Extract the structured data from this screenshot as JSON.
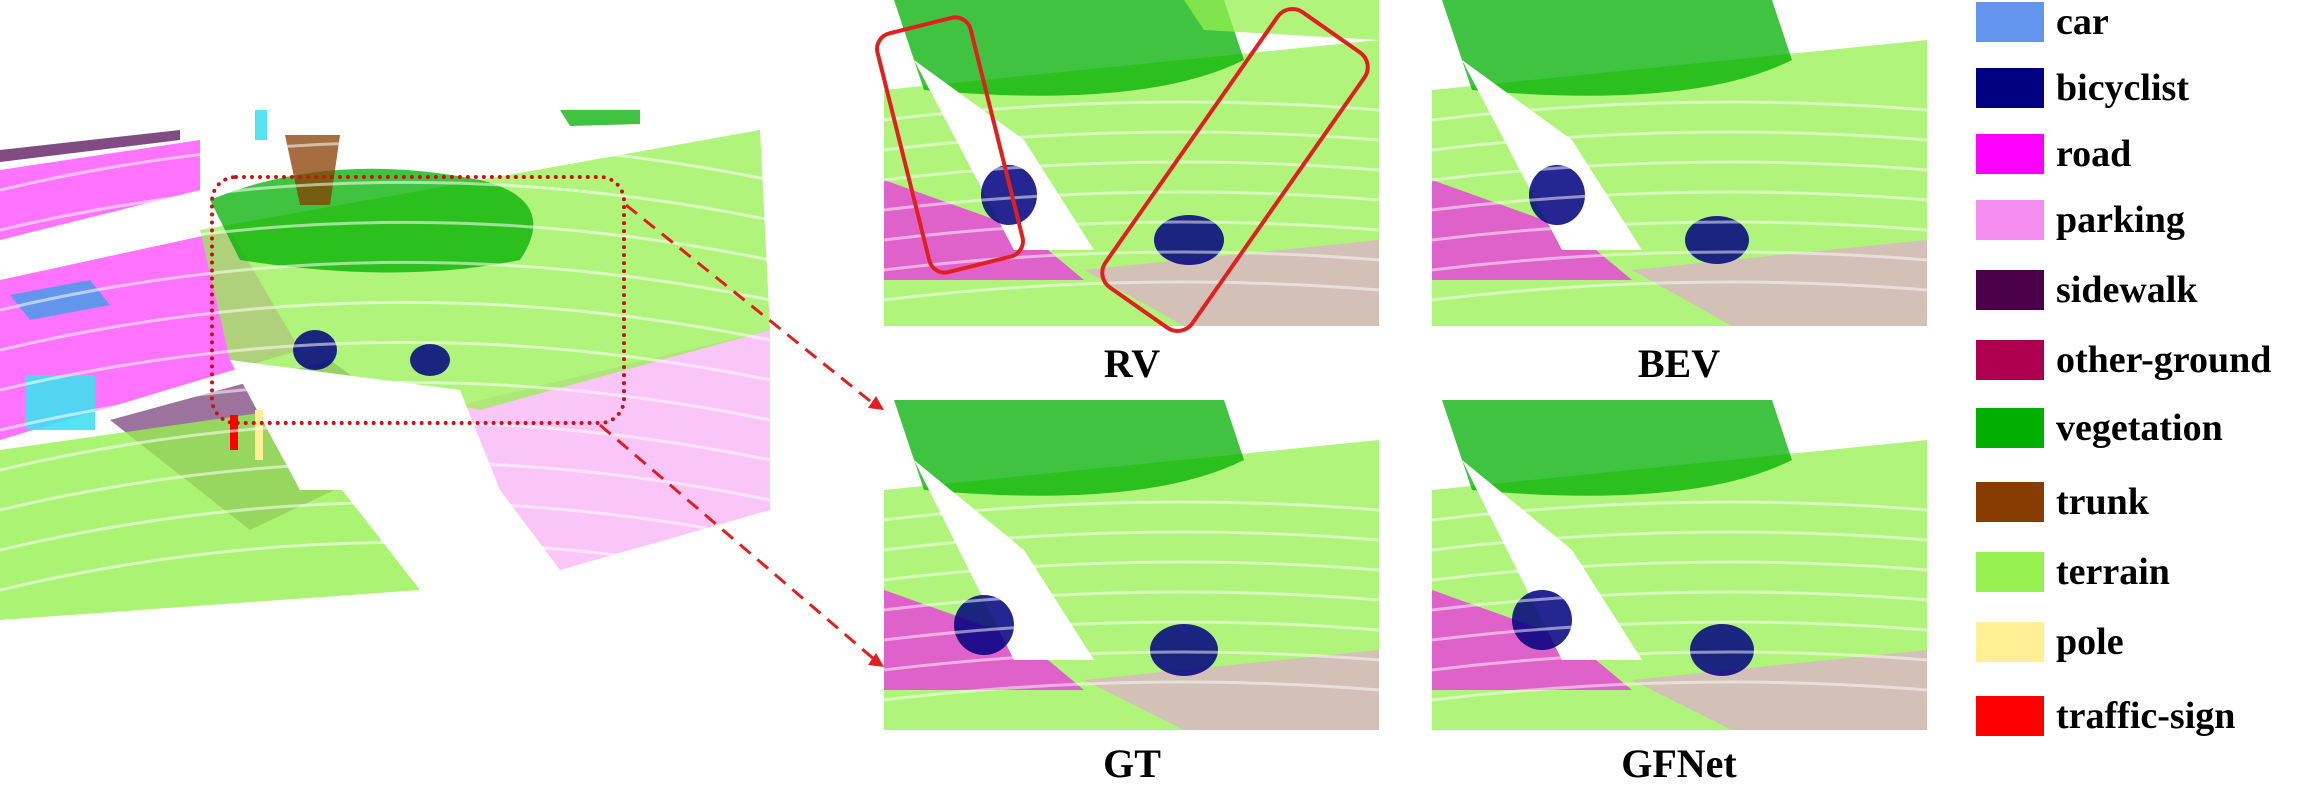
{
  "captions": {
    "rv": "RV",
    "bev": "BEV",
    "gt": "GT",
    "gfnet": "GFNet"
  },
  "legend": [
    {
      "label": "car",
      "color": "#6495ED"
    },
    {
      "label": "bicyclist",
      "color": "#000080"
    },
    {
      "label": "road",
      "color": "#FF00FF"
    },
    {
      "label": "parking",
      "color": "#F58CF0"
    },
    {
      "label": "sidewalk",
      "color": "#4B004B"
    },
    {
      "label": "other-ground",
      "color": "#AF0050"
    },
    {
      "label": "vegetation",
      "color": "#00AF00"
    },
    {
      "label": "trunk",
      "color": "#873C00"
    },
    {
      "label": "terrain",
      "color": "#96F050"
    },
    {
      "label": "pole",
      "color": "#FFF096"
    },
    {
      "label": "traffic-sign",
      "color": "#FF0000"
    }
  ],
  "colors": {
    "highlight_box": "#E02020",
    "zoom_box": "#D01010",
    "arrow": "#E02020"
  }
}
